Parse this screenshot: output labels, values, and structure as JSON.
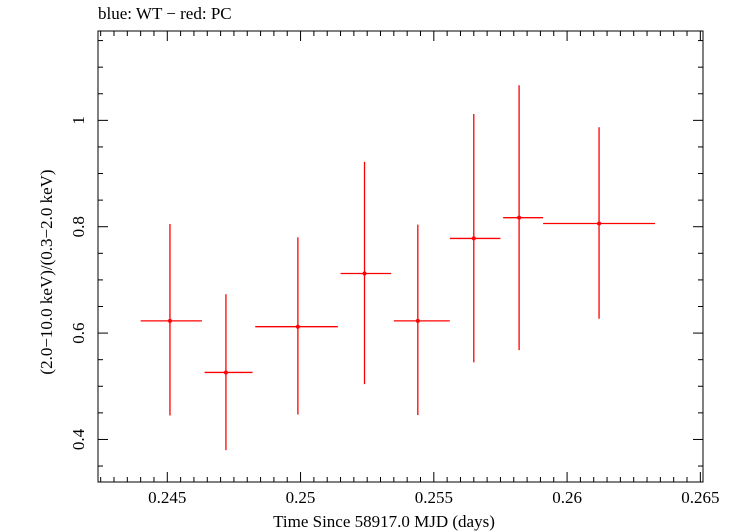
{
  "chart_data": {
    "type": "scatter",
    "title": "blue: WT − red: PC",
    "xlabel": "Time Since 58917.0 MJD (days)",
    "ylabel": "(2.0−10.0 keV)/(0.3−2.0 keV)",
    "xlim": [
      0.2424,
      0.2651
    ],
    "ylim": [
      0.32,
      1.168
    ],
    "x_ticks": [
      0.245,
      0.25,
      0.255,
      0.26,
      0.265
    ],
    "x_tick_labels": [
      "0.245",
      "0.25",
      "0.255",
      "0.26",
      "0.265"
    ],
    "y_ticks": [
      0.4,
      0.6,
      0.8,
      1.0
    ],
    "y_tick_labels": [
      "0.4",
      "0.6",
      "0.8",
      "1"
    ],
    "grid": false,
    "series": [
      {
        "color": "#ff0000",
        "points": [
          {
            "x": 0.2451,
            "y": 0.623,
            "x_lo": 0.244,
            "x_hi": 0.2463,
            "y_lo": 0.445,
            "y_hi": 0.805
          },
          {
            "x": 0.2472,
            "y": 0.526,
            "x_lo": 0.2464,
            "x_hi": 0.2482,
            "y_lo": 0.38,
            "y_hi": 0.673
          },
          {
            "x": 0.2499,
            "y": 0.612,
            "x_lo": 0.2483,
            "x_hi": 0.2514,
            "y_lo": 0.447,
            "y_hi": 0.78
          },
          {
            "x": 0.2524,
            "y": 0.712,
            "x_lo": 0.2515,
            "x_hi": 0.2534,
            "y_lo": 0.504,
            "y_hi": 0.922
          },
          {
            "x": 0.2544,
            "y": 0.623,
            "x_lo": 0.2535,
            "x_hi": 0.2556,
            "y_lo": 0.446,
            "y_hi": 0.804
          },
          {
            "x": 0.2565,
            "y": 0.778,
            "x_lo": 0.2556,
            "x_hi": 0.2575,
            "y_lo": 0.545,
            "y_hi": 1.012
          },
          {
            "x": 0.2582,
            "y": 0.817,
            "x_lo": 0.2576,
            "x_hi": 0.2591,
            "y_lo": 0.568,
            "y_hi": 1.066
          },
          {
            "x": 0.2612,
            "y": 0.806,
            "x_lo": 0.2591,
            "x_hi": 0.2633,
            "y_lo": 0.627,
            "y_hi": 0.987
          }
        ]
      }
    ]
  }
}
